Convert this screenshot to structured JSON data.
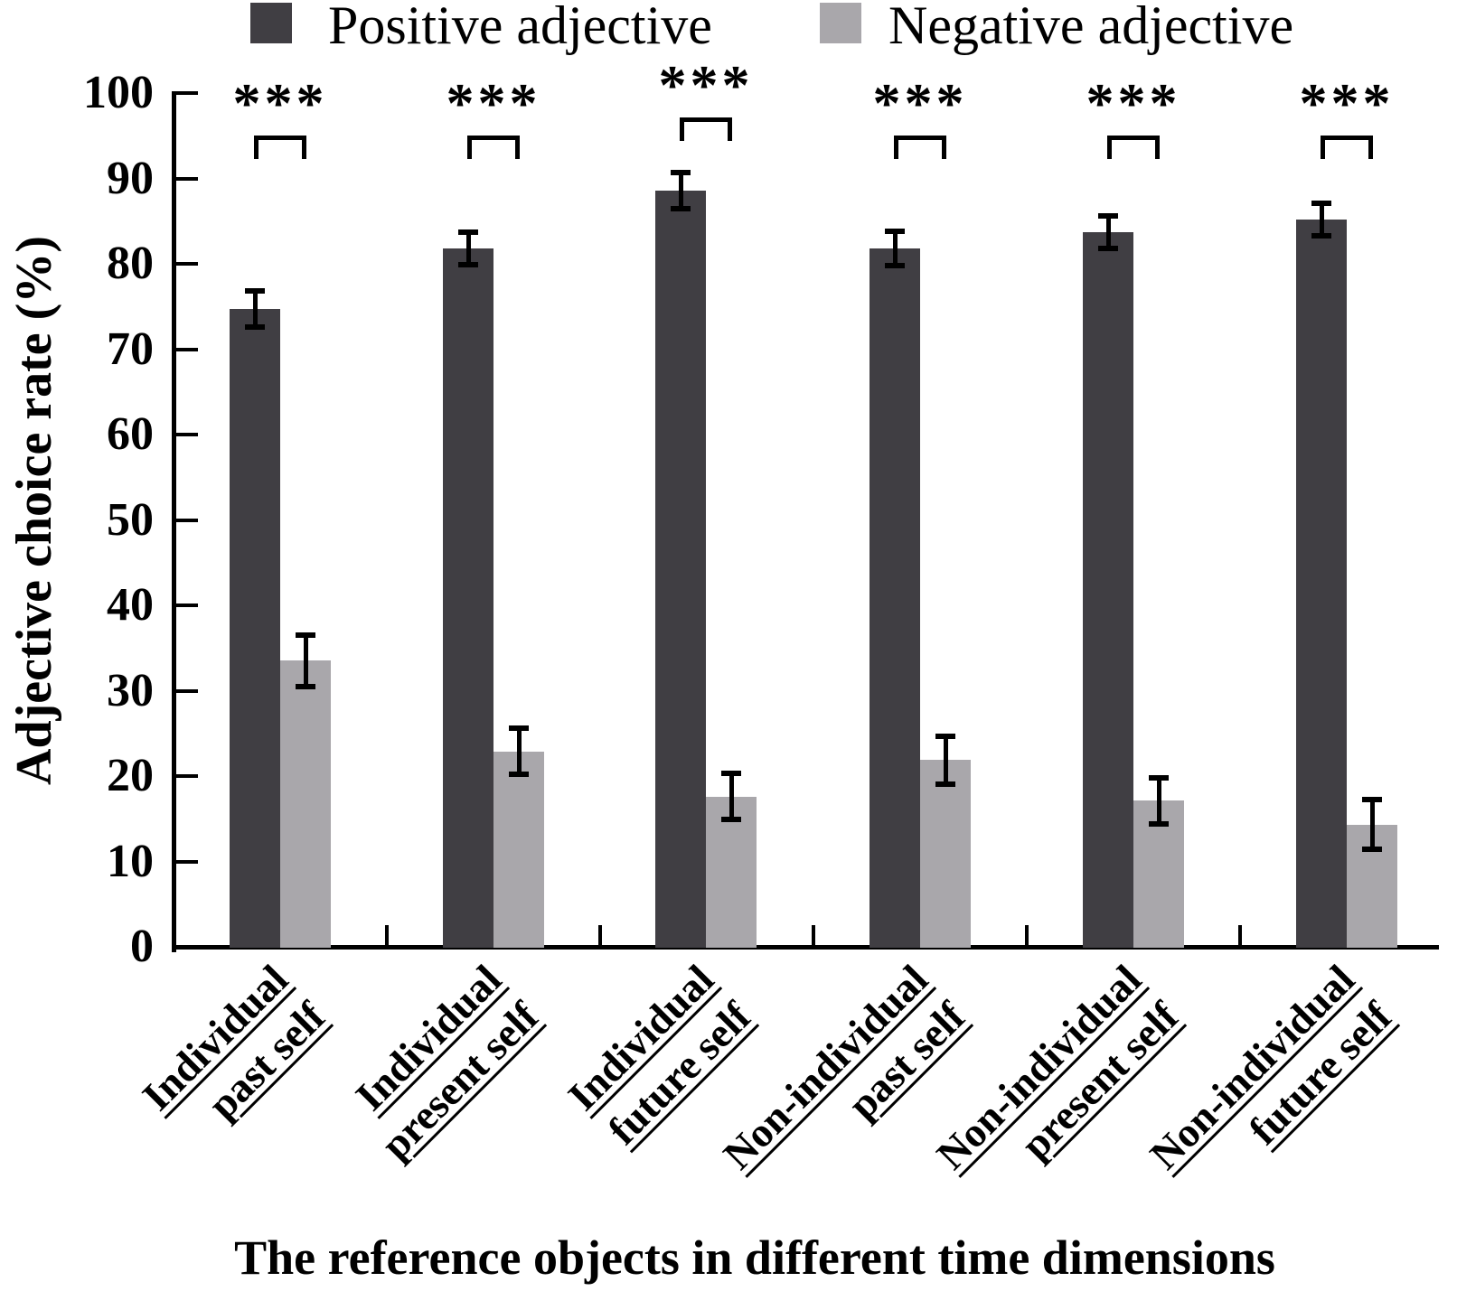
{
  "legend": {
    "items": [
      {
        "label": "Positive adjective",
        "color": "#403e43"
      },
      {
        "label": "Negative adjective",
        "color": "#a9a7ab"
      }
    ]
  },
  "chart_data": {
    "type": "bar",
    "title": "",
    "xlabel": "The reference objects in different time dimensions",
    "ylabel": "Adjective choice rate (%)",
    "ylim": [
      0,
      100
    ],
    "yticks": [
      0,
      10,
      20,
      30,
      40,
      50,
      60,
      70,
      80,
      90,
      100
    ],
    "grid": false,
    "legend_position": "top",
    "categories": [
      {
        "line1": "Individual",
        "line2": "past self"
      },
      {
        "line1": "Individual",
        "line2": "present self"
      },
      {
        "line1": "Individual",
        "line2": "future self"
      },
      {
        "line1": "Non-individual",
        "line2": "past self"
      },
      {
        "line1": "Non-individual",
        "line2": "present self"
      },
      {
        "line1": "Non-individual",
        "line2": "future self"
      }
    ],
    "series": [
      {
        "name": "Positive adjective",
        "color": "#403e43",
        "values": [
          74.7,
          81.8,
          88.6,
          81.8,
          83.7,
          85.2
        ],
        "errors": [
          2.1,
          1.9,
          2.1,
          2.0,
          1.9,
          1.9
        ]
      },
      {
        "name": "Negative adjective",
        "color": "#a9a7ab",
        "values": [
          33.5,
          22.9,
          17.6,
          21.9,
          17.1,
          14.3
        ],
        "errors": [
          3.0,
          2.7,
          2.7,
          2.8,
          2.7,
          2.9
        ]
      }
    ],
    "significance": [
      "***",
      "***",
      "***",
      "***",
      "***",
      "***"
    ]
  }
}
